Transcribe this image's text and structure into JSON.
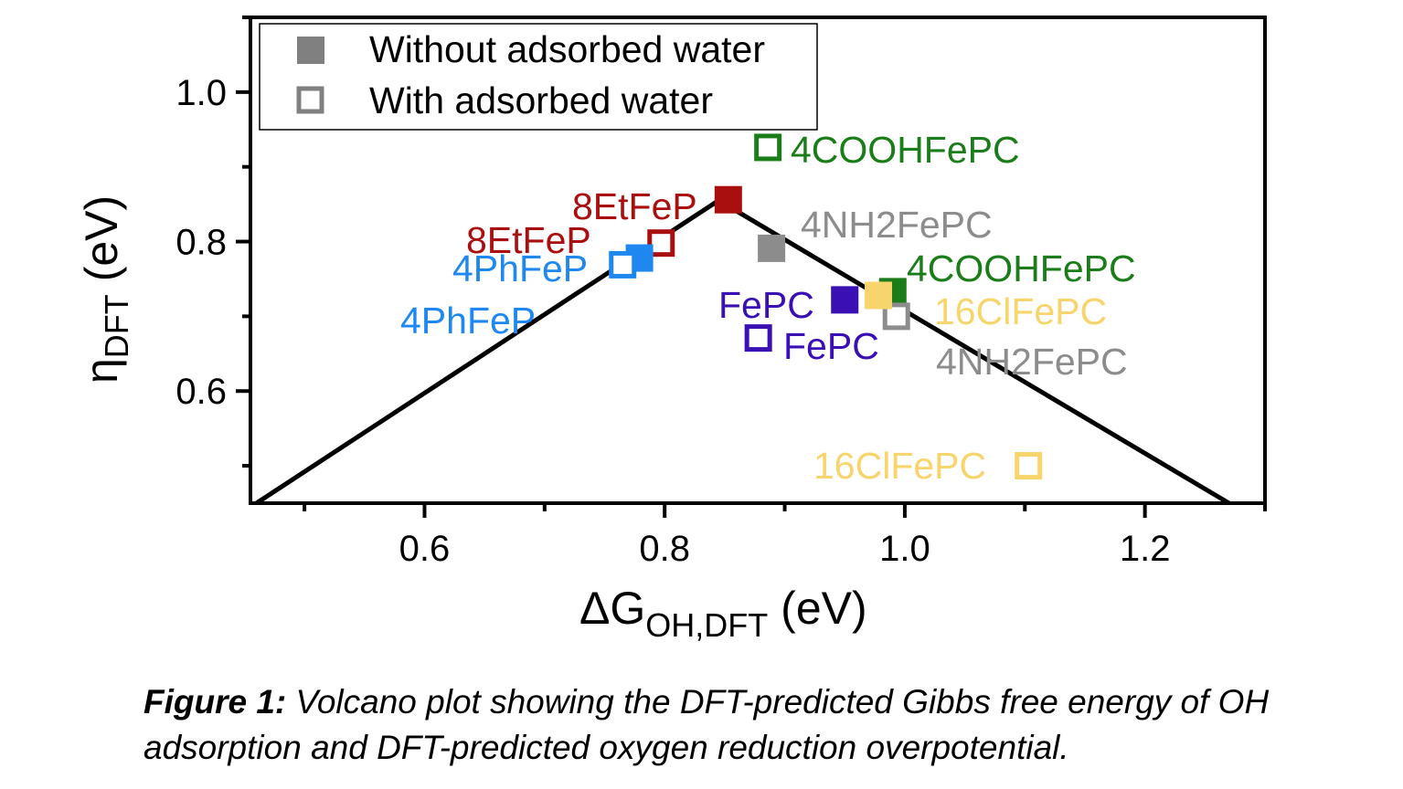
{
  "chart_data": {
    "type": "scatter",
    "xlabel": {
      "main": "ΔG",
      "sub": "OH,DFT",
      "unit": " (eV)"
    },
    "ylabel": {
      "main": "η",
      "sub": "DFT",
      "unit": " (eV)"
    },
    "xlim": [
      0.455,
      1.3
    ],
    "ylim": [
      0.45,
      1.1
    ],
    "xticks": [
      0.6,
      0.8,
      1.0,
      1.2
    ],
    "xtick_labels": [
      "0.6",
      "0.8",
      "1.0",
      "1.2"
    ],
    "yticks": [
      0.6,
      0.8,
      1.0
    ],
    "ytick_labels": [
      "0.6",
      "0.8",
      "1.0"
    ],
    "legend": {
      "position": "top-left",
      "entries": [
        {
          "label": "Without adsorbed water",
          "marker": "filled-square",
          "color": "#808080"
        },
        {
          "label": "With adsorbed water",
          "marker": "open-square",
          "color": "#808080"
        }
      ]
    },
    "volcano_line": [
      {
        "x": 0.46,
        "y": 0.45
      },
      {
        "x": 0.845,
        "y": 0.855
      },
      {
        "x": 1.27,
        "y": 0.45
      }
    ],
    "series": [
      {
        "label": "8EtFeP",
        "color": "#aa0f0f",
        "points": [
          {
            "x": 0.853,
            "y": 0.856,
            "filled": true
          },
          {
            "x": 0.797,
            "y": 0.798,
            "filled": false
          }
        ]
      },
      {
        "label": "4PhFeP",
        "color": "#1e88f0",
        "points": [
          {
            "x": 0.779,
            "y": 0.778,
            "filled": true
          },
          {
            "x": 0.765,
            "y": 0.769,
            "filled": false
          }
        ]
      },
      {
        "label": "4COOHFePC",
        "color": "#1a7d1a",
        "points": [
          {
            "x": 0.886,
            "y": 0.926,
            "filled": false
          },
          {
            "x": 0.99,
            "y": 0.733,
            "filled": true
          }
        ]
      },
      {
        "label": "4NH2FePC",
        "color": "#8c8c8c",
        "points": [
          {
            "x": 0.889,
            "y": 0.791,
            "filled": true
          },
          {
            "x": 0.993,
            "y": 0.7,
            "filled": false
          }
        ]
      },
      {
        "label": "FePC",
        "color": "#3a0fb4",
        "points": [
          {
            "x": 0.95,
            "y": 0.722,
            "filled": true
          },
          {
            "x": 0.878,
            "y": 0.671,
            "filled": false
          }
        ]
      },
      {
        "label": "16ClFePC",
        "color": "#f8d56c",
        "points": [
          {
            "x": 0.978,
            "y": 0.728,
            "filled": true
          },
          {
            "x": 1.103,
            "y": 0.5,
            "filled": false
          }
        ]
      }
    ],
    "point_labels": [
      {
        "text": "4COOHFePC",
        "color": "#1a7d1a",
        "ax": 865,
        "ay": 163
      },
      {
        "text": "8EtFeP",
        "color": "#aa0f0f",
        "ax": 626,
        "ay": 225
      },
      {
        "text": "4NH2FePC",
        "color": "#8c8c8c",
        "ax": 876,
        "ay": 245
      },
      {
        "text": "8EtFeP",
        "color": "#aa0f0f",
        "ax": 510,
        "ay": 262
      },
      {
        "text": "4PhFeP",
        "color": "#1e88f0",
        "ax": 495,
        "ay": 293
      },
      {
        "text": "4COOHFePC",
        "color": "#1a7d1a",
        "ax": 992,
        "ay": 293
      },
      {
        "text": "FePC",
        "color": "#3a0fb4",
        "ax": 786,
        "ay": 333
      },
      {
        "text": "16ClFePC",
        "color": "#f8d56c",
        "ax": 1022,
        "ay": 340
      },
      {
        "text": "4PhFeP",
        "color": "#1e88f0",
        "ax": 438,
        "ay": 350
      },
      {
        "text": "FePC",
        "color": "#3a0fb4",
        "ax": 857,
        "ay": 378
      },
      {
        "text": "4NH2FePC",
        "color": "#8c8c8c",
        "ax": 1024,
        "ay": 395
      },
      {
        "text": "16ClFePC",
        "color": "#f8d56c",
        "ax": 890,
        "ay": 509
      }
    ]
  },
  "caption": {
    "label": "Figure 1:",
    "text": " Volcano plot showing the DFT-predicted Gibbs free energy of OH adsorption and DFT-predicted oxygen reduction overpotential."
  }
}
